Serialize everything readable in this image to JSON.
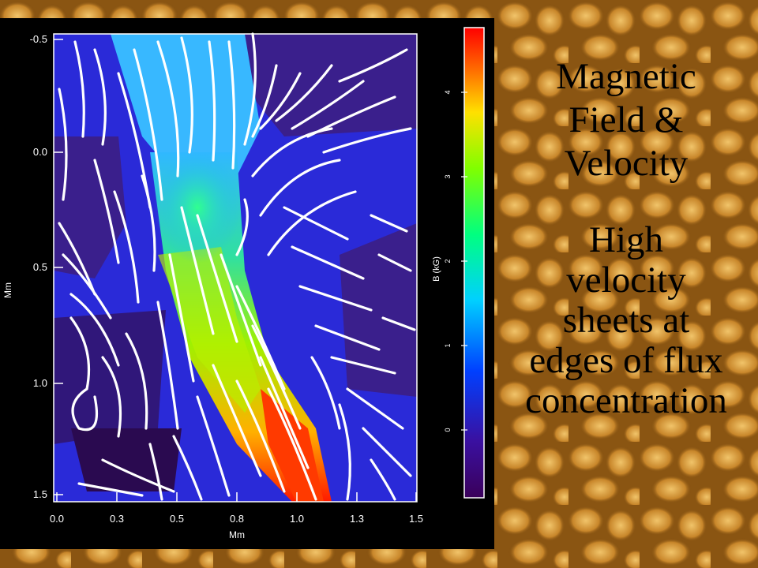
{
  "slide": {
    "heading_lines": [
      "Magnetic",
      "Field &",
      "Velocity"
    ],
    "body_lines": [
      "High",
      "velocity",
      "sheets at",
      "edges of flux",
      "concentration"
    ]
  },
  "figure": {
    "x_axis": {
      "label": "Mm",
      "ticks": [
        "0.0",
        "0.3",
        "0.5",
        "0.8",
        "1.0",
        "1.3",
        "1.5"
      ]
    },
    "y_axis": {
      "label": "Mm",
      "ticks": [
        "-0.5",
        "0.0",
        "0.5",
        "1.0",
        "1.5"
      ]
    },
    "colorbar": {
      "label": "B (kG)",
      "ticks": [
        "0",
        "1",
        "2",
        "3",
        "4"
      ]
    }
  },
  "colors": {
    "text": "#000000",
    "background": "#a8690f",
    "streamline": "#ffffff"
  }
}
